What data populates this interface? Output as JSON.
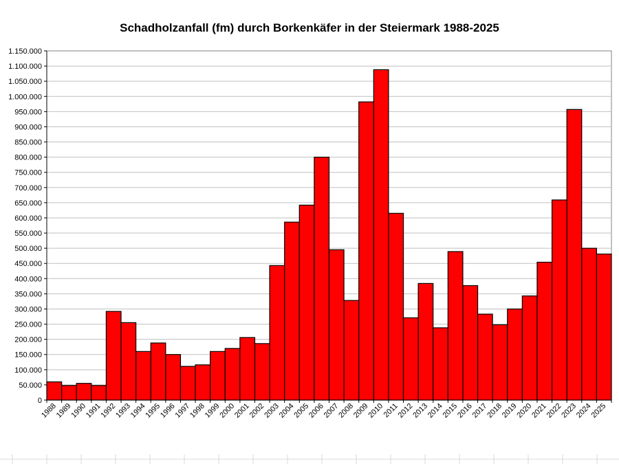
{
  "chart_data": {
    "type": "bar",
    "title": "Schadholzanfall (fm) durch Borkenkäfer in der Steiermark 1988-2025",
    "xlabel": "",
    "ylabel": "",
    "ylim": [
      0,
      1150000
    ],
    "ytick_step": 50000,
    "ytick_labels": [
      "0",
      "50.000",
      "100.000",
      "150.000",
      "200.000",
      "250.000",
      "300.000",
      "350.000",
      "400.000",
      "450.000",
      "500.000",
      "550.000",
      "600.000",
      "650.000",
      "700.000",
      "750.000",
      "800.000",
      "850.000",
      "900.000",
      "950.000",
      "1.000.000",
      "1.050.000",
      "1.100.000",
      "1.150.000"
    ],
    "grid": true,
    "legend": "none",
    "bar_color": "#ff0000",
    "categories": [
      "1988",
      "1989",
      "1990",
      "1991",
      "1992",
      "1993",
      "1994",
      "1995",
      "1996",
      "1997",
      "1998",
      "1999",
      "2000",
      "2001",
      "2002",
      "2003",
      "2004",
      "2005",
      "2006",
      "2007",
      "2008",
      "2009",
      "2010",
      "2011",
      "2012",
      "2013",
      "2014",
      "2015",
      "2016",
      "2017",
      "2018",
      "2019",
      "2020",
      "2021",
      "2022",
      "2023",
      "2024",
      "2025"
    ],
    "values": [
      60000,
      48000,
      55000,
      48000,
      292000,
      255000,
      160000,
      188000,
      150000,
      111000,
      116000,
      160000,
      170000,
      206000,
      186000,
      443000,
      586000,
      642000,
      800000,
      495000,
      328000,
      982000,
      1088000,
      615000,
      271000,
      384000,
      238000,
      489000,
      377000,
      283000,
      248000,
      300000,
      343000,
      454000,
      659000,
      957000,
      500000,
      481000
    ]
  }
}
